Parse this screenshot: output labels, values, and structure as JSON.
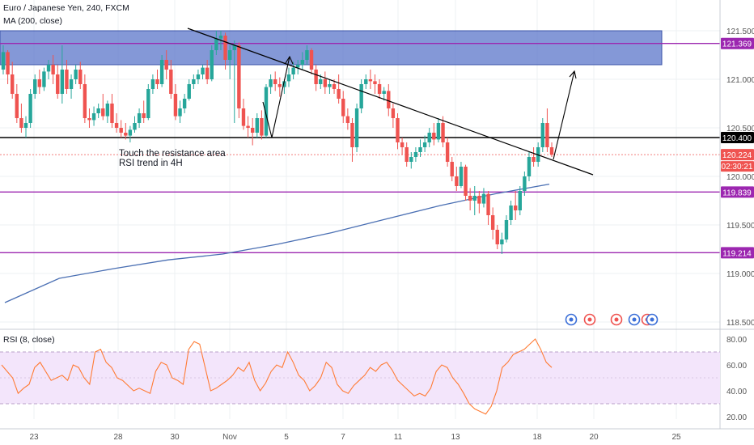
{
  "header": {
    "symbol": "Euro / Japanese Yen, 240, FXCM",
    "ma": "MA (200, close)",
    "rsi": "RSI (8, close)"
  },
  "annotations": {
    "line1": "Touch the resistance area",
    "line2": "RSI trend in 4H"
  },
  "colors": {
    "up": "#26a69a",
    "down": "#ef5350",
    "ma": "#4a6fb3",
    "zone": "#5b75c9",
    "level": "#9c27b0",
    "rsi": "#ff7b34",
    "rsi_band": "#f3e5fb"
  },
  "chart_data": [
    {
      "type": "candlestick",
      "x_ticks": [
        "23",
        "28",
        "30",
        "Nov",
        "5",
        "7",
        "11",
        "13",
        "18",
        "20",
        "25"
      ],
      "y_ticks": [
        "121.500",
        "121.000",
        "120.500",
        "120.000",
        "119.500",
        "119.000",
        "118.500"
      ],
      "ylim": [
        118.45,
        121.75
      ],
      "levels": [
        {
          "label": "121.369",
          "value": 121.369,
          "color": "#9c27b0"
        },
        {
          "label": "120.400",
          "value": 120.4,
          "color": "#000000"
        },
        {
          "label": "120.224",
          "value": 120.224,
          "color": "#ef5350"
        },
        {
          "label": "119.839",
          "value": 119.839,
          "color": "#9c27b0"
        },
        {
          "label": "119.214",
          "value": 119.214,
          "color": "#9c27b0"
        }
      ],
      "countdown": "02:30:21",
      "resistance_zone": [
        121.15,
        121.5
      ],
      "candles": [
        [
          121.1,
          121.35,
          121.28,
          121.05
        ],
        [
          121.28,
          121.3,
          121.05,
          120.95
        ],
        [
          121.05,
          121.18,
          120.85,
          120.8
        ],
        [
          120.85,
          120.95,
          120.6,
          120.55
        ],
        [
          120.6,
          120.75,
          120.5,
          120.45
        ],
        [
          120.5,
          120.62,
          120.55,
          120.4
        ],
        [
          120.55,
          120.9,
          120.85,
          120.5
        ],
        [
          120.85,
          121.05,
          121.0,
          120.8
        ],
        [
          121.0,
          121.1,
          120.92,
          120.85
        ],
        [
          120.92,
          121.12,
          121.08,
          120.88
        ],
        [
          121.08,
          121.2,
          121.15,
          121.0
        ],
        [
          121.15,
          121.25,
          121.05,
          120.95
        ],
        [
          121.05,
          121.15,
          120.85,
          120.8
        ],
        [
          120.85,
          121.35,
          121.1,
          120.75
        ],
        [
          121.1,
          121.2,
          120.9,
          120.85
        ],
        [
          120.9,
          121.05,
          121.0,
          120.8
        ],
        [
          121.0,
          121.15,
          121.1,
          120.95
        ],
        [
          121.1,
          121.18,
          120.95,
          120.9
        ],
        [
          120.95,
          121.05,
          120.6,
          120.55
        ],
        [
          120.6,
          120.7,
          120.58,
          120.5
        ],
        [
          120.58,
          120.72,
          120.65,
          120.52
        ],
        [
          120.65,
          120.75,
          120.7,
          120.6
        ],
        [
          120.7,
          120.85,
          120.62,
          120.58
        ],
        [
          120.62,
          120.78,
          120.75,
          120.55
        ],
        [
          120.75,
          120.85,
          120.55,
          120.5
        ],
        [
          120.55,
          120.65,
          120.5,
          120.45
        ],
        [
          120.5,
          120.58,
          120.45,
          120.4
        ],
        [
          120.45,
          120.55,
          120.42,
          120.38
        ],
        [
          120.42,
          120.52,
          120.48,
          120.35
        ],
        [
          120.48,
          120.62,
          120.55,
          120.45
        ],
        [
          120.55,
          120.7,
          120.65,
          120.5
        ],
        [
          120.65,
          120.78,
          120.6,
          120.55
        ],
        [
          120.6,
          120.95,
          120.9,
          120.58
        ],
        [
          120.9,
          121.05,
          121.0,
          120.85
        ],
        [
          121.0,
          121.1,
          120.95,
          120.9
        ],
        [
          120.95,
          121.25,
          121.2,
          120.92
        ],
        [
          121.2,
          121.3,
          121.1,
          121.0
        ],
        [
          121.1,
          121.2,
          120.85,
          120.8
        ],
        [
          120.85,
          120.95,
          120.62,
          120.58
        ],
        [
          120.62,
          120.78,
          120.7,
          120.55
        ],
        [
          120.7,
          120.85,
          120.8,
          120.65
        ],
        [
          120.8,
          121.0,
          120.95,
          120.78
        ],
        [
          120.95,
          121.05,
          121.0,
          120.9
        ],
        [
          121.0,
          121.1,
          121.05,
          120.95
        ],
        [
          121.05,
          121.15,
          121.12,
          121.0
        ],
        [
          121.12,
          121.2,
          121.0,
          120.95
        ],
        [
          121.0,
          121.35,
          121.3,
          120.98
        ],
        [
          121.3,
          121.5,
          121.42,
          121.25
        ],
        [
          121.42,
          121.5,
          121.45,
          121.3
        ],
        [
          121.45,
          121.48,
          121.2,
          121.1
        ],
        [
          121.2,
          121.35,
          121.3,
          121.0
        ],
        [
          121.3,
          121.4,
          121.35,
          120.55
        ],
        [
          121.35,
          121.38,
          120.7,
          120.6
        ],
        [
          120.7,
          120.8,
          120.52,
          120.48
        ],
        [
          120.52,
          120.62,
          120.5,
          120.4
        ],
        [
          120.5,
          120.6,
          120.45,
          120.32
        ],
        [
          120.45,
          120.65,
          120.6,
          120.4
        ],
        [
          120.6,
          120.68,
          120.42,
          120.38
        ],
        [
          120.42,
          120.95,
          120.92,
          120.4
        ],
        [
          120.92,
          121.05,
          121.0,
          120.85
        ],
        [
          121.0,
          121.08,
          120.95,
          120.88
        ],
        [
          120.95,
          121.02,
          120.92,
          120.82
        ],
        [
          120.92,
          121.0,
          120.98,
          120.85
        ],
        [
          120.98,
          121.12,
          121.05,
          120.92
        ],
        [
          121.05,
          121.18,
          121.12,
          121.0
        ],
        [
          121.12,
          121.2,
          121.15,
          121.05
        ],
        [
          121.15,
          121.28,
          121.2,
          121.1
        ],
        [
          121.2,
          121.35,
          121.3,
          121.15
        ],
        [
          121.3,
          121.32,
          121.1,
          121.05
        ],
        [
          121.1,
          121.15,
          120.95,
          120.88
        ],
        [
          120.95,
          121.05,
          121.0,
          120.9
        ],
        [
          121.0,
          121.08,
          120.92,
          120.85
        ],
        [
          120.92,
          121.0,
          120.95,
          120.85
        ],
        [
          120.95,
          121.0,
          120.9,
          120.85
        ],
        [
          120.9,
          121.05,
          120.8,
          120.75
        ],
        [
          120.8,
          120.88,
          120.62,
          120.55
        ],
        [
          120.62,
          120.7,
          120.55,
          120.48
        ],
        [
          120.55,
          120.6,
          120.3,
          120.15
        ],
        [
          120.3,
          120.75,
          120.7,
          120.25
        ],
        [
          120.7,
          121.0,
          120.95,
          120.65
        ],
        [
          120.95,
          121.05,
          121.0,
          120.9
        ],
        [
          121.0,
          121.1,
          120.98,
          120.9
        ],
        [
          120.98,
          121.05,
          120.95,
          120.85
        ],
        [
          120.95,
          121.0,
          120.85,
          120.8
        ],
        [
          120.85,
          120.92,
          120.88,
          120.78
        ],
        [
          120.88,
          120.95,
          120.7,
          120.62
        ],
        [
          120.7,
          120.75,
          120.6,
          120.5
        ],
        [
          120.6,
          120.65,
          120.35,
          120.28
        ],
        [
          120.35,
          120.4,
          120.3,
          120.22
        ],
        [
          120.3,
          120.35,
          120.15,
          120.1
        ],
        [
          120.15,
          120.25,
          120.2,
          120.08
        ],
        [
          120.2,
          120.3,
          120.25,
          120.15
        ],
        [
          120.25,
          120.38,
          120.3,
          120.2
        ],
        [
          120.3,
          120.42,
          120.35,
          120.25
        ],
        [
          120.35,
          120.5,
          120.45,
          120.3
        ],
        [
          120.45,
          120.55,
          120.38,
          120.32
        ],
        [
          120.38,
          120.6,
          120.55,
          120.35
        ],
        [
          120.55,
          120.62,
          120.35,
          120.3
        ],
        [
          120.35,
          120.4,
          120.15,
          120.1
        ],
        [
          120.15,
          120.2,
          120.0,
          119.95
        ],
        [
          120.0,
          120.1,
          119.9,
          119.85
        ],
        [
          119.9,
          120.15,
          120.1,
          119.88
        ],
        [
          120.1,
          120.12,
          119.8,
          119.75
        ],
        [
          119.8,
          119.88,
          119.75,
          119.65
        ],
        [
          119.75,
          119.9,
          119.8,
          119.6
        ],
        [
          119.8,
          119.85,
          119.72,
          119.62
        ],
        [
          119.72,
          119.88,
          119.82,
          119.68
        ],
        [
          119.82,
          119.85,
          119.6,
          119.5
        ],
        [
          119.6,
          119.68,
          119.45,
          119.35
        ],
        [
          119.45,
          119.5,
          119.3,
          119.25
        ],
        [
          119.3,
          119.42,
          119.35,
          119.2
        ],
        [
          119.35,
          119.6,
          119.55,
          119.32
        ],
        [
          119.55,
          119.75,
          119.7,
          119.5
        ],
        [
          119.7,
          119.85,
          119.65,
          119.55
        ],
        [
          119.65,
          119.9,
          119.85,
          119.6
        ],
        [
          119.85,
          120.05,
          120.0,
          119.8
        ],
        [
          120.0,
          120.25,
          120.2,
          119.95
        ],
        [
          120.2,
          120.3,
          120.15,
          120.1
        ],
        [
          120.15,
          120.35,
          120.3,
          120.1
        ],
        [
          120.3,
          120.6,
          120.55,
          120.25
        ],
        [
          120.55,
          120.7,
          120.3,
          120.25
        ],
        [
          120.3,
          120.35,
          120.224,
          120.2
        ]
      ],
      "ma200": [
        118.7,
        118.95,
        119.05,
        119.14,
        119.2,
        119.3,
        119.42,
        119.56,
        119.7,
        119.82,
        119.92
      ],
      "rsi": {
        "ticks": [
          "80.00",
          "60.00",
          "40.00",
          "20.00"
        ],
        "band": [
          30,
          70
        ],
        "values": [
          60,
          55,
          50,
          38,
          42,
          45,
          58,
          62,
          55,
          48,
          50,
          52,
          48,
          60,
          58,
          50,
          45,
          70,
          72,
          62,
          58,
          50,
          48,
          44,
          40,
          42,
          40,
          38,
          55,
          62,
          60,
          50,
          48,
          45,
          72,
          78,
          76,
          58,
          40,
          42,
          45,
          48,
          52,
          58,
          55,
          62,
          48,
          40,
          46,
          55,
          60,
          58,
          70,
          62,
          52,
          48,
          40,
          44,
          50,
          62,
          58,
          45,
          40,
          38,
          44,
          48,
          52,
          58,
          55,
          60,
          62,
          56,
          48,
          44,
          40,
          36,
          38,
          36,
          42,
          55,
          60,
          58,
          50,
          45,
          38,
          30,
          26,
          24,
          22,
          28,
          40,
          58,
          62,
          68,
          70,
          72,
          76,
          80,
          72,
          62,
          58
        ]
      }
    }
  ]
}
